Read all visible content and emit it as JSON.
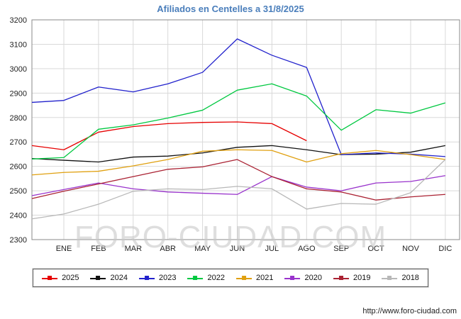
{
  "page": {
    "title": "Afiliados en Centelles a 31/8/2025",
    "watermark": "FORO-CIUDAD.COM",
    "footer_url": "http://www.foro-ciudad.com"
  },
  "chart_data": {
    "type": "line",
    "title": "Afiliados en Centelles a 31/8/2025",
    "xlabel": "",
    "ylabel": "",
    "ylim": [
      2300,
      3200
    ],
    "y_ticks": [
      3200,
      3100,
      3000,
      2900,
      2800,
      2700,
      2600,
      2500,
      2400,
      2300
    ],
    "months": [
      "ENE",
      "FEB",
      "MAR",
      "ABR",
      "MAY",
      "JUN",
      "JUL",
      "AGO",
      "SEP",
      "OCT",
      "NOV",
      "DIC"
    ],
    "grid": true,
    "legend_position": "bottom",
    "series": [
      {
        "name": "2025",
        "color": "#e60000",
        "values": [
          2685,
          2668,
          2740,
          2763,
          2775,
          2780,
          2782,
          2775,
          2705
        ]
      },
      {
        "name": "2024",
        "color": "#111111",
        "values": [
          2632,
          2625,
          2618,
          2638,
          2642,
          2655,
          2678,
          2685,
          2668,
          2648,
          2650,
          2658,
          2685
        ]
      },
      {
        "name": "2023",
        "color": "#2222cc",
        "values": [
          2862,
          2870,
          2925,
          2905,
          2938,
          2985,
          3122,
          3055,
          3005,
          2648,
          2655,
          2650,
          2640
        ]
      },
      {
        "name": "2022",
        "color": "#00c840",
        "values": [
          2630,
          2636,
          2752,
          2770,
          2798,
          2830,
          2912,
          2938,
          2888,
          2748,
          2832,
          2818,
          2860
        ]
      },
      {
        "name": "2021",
        "color": "#e0a010",
        "values": [
          2565,
          2575,
          2580,
          2602,
          2628,
          2662,
          2668,
          2665,
          2618,
          2652,
          2665,
          2648,
          2628
        ]
      },
      {
        "name": "2020",
        "color": "#9933cc",
        "values": [
          2480,
          2505,
          2532,
          2508,
          2495,
          2490,
          2485,
          2558,
          2515,
          2500,
          2532,
          2538,
          2562
        ]
      },
      {
        "name": "2019",
        "color": "#aa2233",
        "values": [
          2468,
          2498,
          2528,
          2558,
          2588,
          2598,
          2628,
          2558,
          2508,
          2495,
          2462,
          2475,
          2485
        ]
      },
      {
        "name": "2018",
        "color": "#b8b8b8",
        "values": [
          2385,
          2405,
          2445,
          2498,
          2508,
          2505,
          2518,
          2508,
          2425,
          2448,
          2445,
          2492,
          2628
        ]
      }
    ]
  }
}
